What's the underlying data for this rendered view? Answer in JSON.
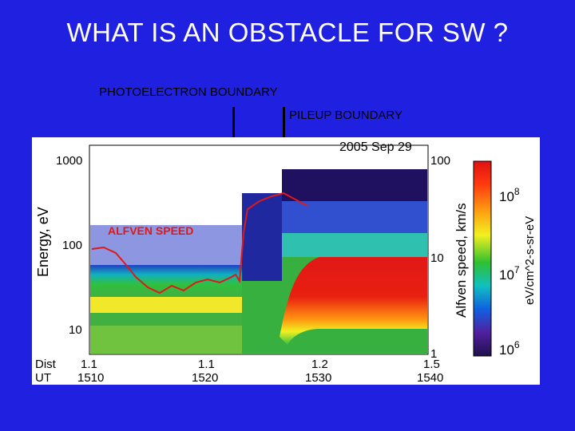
{
  "slide": {
    "title": "WHAT IS AN OBSTACLE FOR SW ?",
    "background": "#2020e0",
    "labels": {
      "photoelectron": "PHOTOELECTRON BOUNDARY",
      "pileup": "PILEUP BOUNDARY"
    }
  },
  "figure": {
    "date": "2005 Sep 29",
    "left_axis_label": "Energy, eV",
    "left_ticks": [
      "1000",
      "100",
      "10"
    ],
    "right_axis_label": "Alfven speed, km/s",
    "right_ticks": [
      "100",
      "10",
      "1"
    ],
    "colorbar_label": "eV/cm^2-s-sr-eV",
    "colorbar_ticks": [
      {
        "base": "10",
        "exp": "8"
      },
      {
        "base": "10",
        "exp": "7"
      },
      {
        "base": "10",
        "exp": "6"
      }
    ],
    "overlay_label": "ALFVEN SPEED",
    "overlay_color": "#e01818",
    "dist_label": "Dist",
    "ut_label": "UT",
    "dist_ticks": [
      "1.1",
      "1.1",
      "1.2",
      "1.5"
    ],
    "ut_ticks": [
      "1510",
      "1520",
      "1530",
      "1540"
    ]
  }
}
